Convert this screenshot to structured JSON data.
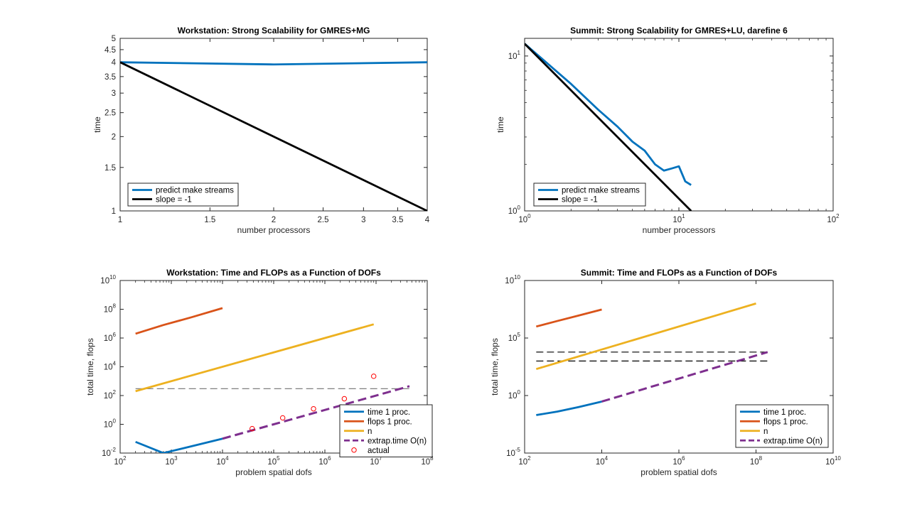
{
  "chart_data": [
    {
      "type": "line",
      "title": "Workstation: Strong Scalability for GMRES+MG",
      "xlabel": "number processors",
      "ylabel": "time",
      "xscale": "log",
      "yscale": "log",
      "xlim": [
        1,
        4
      ],
      "ylim": [
        1,
        5
      ],
      "xticks": [
        1,
        1.5,
        2,
        2.5,
        3,
        3.5,
        4
      ],
      "xtick_labels": [
        "1",
        "1.5",
        "2",
        "2.5",
        "3",
        "3.5",
        "4"
      ],
      "yticks": [
        1,
        1.5,
        2,
        2.5,
        3,
        3.5,
        4,
        4.5,
        5
      ],
      "ytick_labels": [
        "1",
        "1.5",
        "2",
        "2.5",
        "3",
        "3.5",
        "4",
        "4.5",
        "5"
      ],
      "grid": false,
      "legend_position": "bottom-left",
      "series": [
        {
          "name": "predict make streams",
          "color": "#0072BD",
          "style": "solid",
          "marker": "none",
          "x": [
            1,
            2,
            4
          ],
          "y": [
            4.0,
            3.92,
            4.0
          ]
        },
        {
          "name": "slope = -1",
          "color": "#000000",
          "style": "solid",
          "marker": "none",
          "x": [
            1,
            4
          ],
          "y": [
            4,
            1
          ]
        }
      ]
    },
    {
      "type": "line",
      "title": "Summit: Strong Scalability for GMRES+LU, darefine 6",
      "xlabel": "number processors",
      "ylabel": "time",
      "xscale": "log",
      "yscale": "log",
      "xlim": [
        1,
        100
      ],
      "ylim": [
        1,
        13
      ],
      "xticks": [
        1,
        10,
        100
      ],
      "xtick_labels": [
        {
          "base": "10",
          "exp": "0"
        },
        {
          "base": "10",
          "exp": "1"
        },
        {
          "base": "10",
          "exp": "2"
        }
      ],
      "yticks": [
        1,
        10
      ],
      "ytick_labels": [
        {
          "base": "10",
          "exp": "0"
        },
        {
          "base": "10",
          "exp": "1"
        }
      ],
      "grid": false,
      "legend_position": "bottom-left",
      "series": [
        {
          "name": "predict make streams",
          "color": "#0072BD",
          "style": "solid",
          "marker": "none",
          "x": [
            1,
            2,
            3,
            4,
            5,
            6,
            7,
            8,
            9,
            10,
            11,
            12
          ],
          "y": [
            12.0,
            6.6,
            4.5,
            3.5,
            2.8,
            2.45,
            2.0,
            1.82,
            1.88,
            1.94,
            1.55,
            1.47
          ]
        },
        {
          "name": "slope = -1",
          "color": "#000000",
          "style": "solid",
          "marker": "none",
          "x": [
            1,
            12
          ],
          "y": [
            12,
            1
          ]
        }
      ]
    },
    {
      "type": "line",
      "title": "Workstation: Time and FLOPs as a Function of DOFs",
      "xlabel": "problem spatial dofs",
      "ylabel": "total time, flops",
      "xscale": "log",
      "yscale": "log",
      "xlim": [
        100,
        100000000
      ],
      "ylim": [
        0.01,
        10000000000
      ],
      "xticks": [
        100,
        1000,
        10000,
        100000,
        1000000,
        10000000,
        100000000
      ],
      "xtick_labels": [
        {
          "base": "10",
          "exp": "2"
        },
        {
          "base": "10",
          "exp": "3"
        },
        {
          "base": "10",
          "exp": "4"
        },
        {
          "base": "10",
          "exp": "5"
        },
        {
          "base": "10",
          "exp": "6"
        },
        {
          "base": "10",
          "exp": "7"
        },
        {
          "base": "10",
          "exp": "8"
        }
      ],
      "yticks": [
        0.01,
        1,
        100,
        10000,
        1000000,
        100000000,
        10000000000
      ],
      "ytick_labels": [
        {
          "base": "10",
          "exp": "-2"
        },
        {
          "base": "10",
          "exp": "0"
        },
        {
          "base": "10",
          "exp": "2"
        },
        {
          "base": "10",
          "exp": "4"
        },
        {
          "base": "10",
          "exp": "6"
        },
        {
          "base": "10",
          "exp": "8"
        },
        {
          "base": "10",
          "exp": "10"
        }
      ],
      "grid": false,
      "legend_position": "bottom-right",
      "series": [
        {
          "name": "time 1 proc.",
          "color": "#0072BD",
          "style": "solid",
          "marker": "none",
          "x": [
            200,
            700,
            2500,
            10000
          ],
          "y": [
            0.06,
            0.01,
            0.03,
            0.1
          ]
        },
        {
          "name": "flops 1 proc.",
          "color": "#D95319",
          "style": "solid",
          "marker": "none",
          "x": [
            200,
            700,
            2500,
            10000
          ],
          "y": [
            2000000,
            8000000,
            28000000,
            120000000
          ]
        },
        {
          "name": "n",
          "color": "#EDB120",
          "style": "solid",
          "marker": "none",
          "x": [
            200,
            9000000
          ],
          "y": [
            200,
            9000000
          ]
        },
        {
          "name": "extrap.time O(n)",
          "color": "#7E2F8E",
          "style": "dashed",
          "marker": "none",
          "x": [
            10000,
            45000000
          ],
          "y": [
            0.1,
            450
          ]
        },
        {
          "name": "actual",
          "color": "#FF0000",
          "style": "none",
          "marker": "circle",
          "x": [
            38000,
            150000,
            600000,
            2400000,
            9000000
          ],
          "y": [
            0.5,
            2.8,
            12,
            60,
            2200
          ]
        },
        {
          "name": "",
          "color": "#808080",
          "style": "dashed",
          "marker": "none",
          "x": [
            200,
            45000000
          ],
          "y": [
            300,
            300
          ]
        }
      ]
    },
    {
      "type": "line",
      "title": "Summit: Time and FLOPs as a Function of DOFs",
      "xlabel": "problem spatial dofs",
      "ylabel": "total time, flops",
      "xscale": "log",
      "yscale": "log",
      "xlim": [
        100,
        10000000000
      ],
      "ylim": [
        1e-05,
        10000000000
      ],
      "xticks": [
        100,
        10000,
        1000000,
        100000000,
        10000000000
      ],
      "xtick_labels": [
        {
          "base": "10",
          "exp": "2"
        },
        {
          "base": "10",
          "exp": "4"
        },
        {
          "base": "10",
          "exp": "6"
        },
        {
          "base": "10",
          "exp": "8"
        },
        {
          "base": "10",
          "exp": "10"
        }
      ],
      "yticks": [
        1e-05,
        1,
        100000,
        10000000000
      ],
      "ytick_labels": [
        {
          "base": "10",
          "exp": "-5"
        },
        {
          "base": "10",
          "exp": "0"
        },
        {
          "base": "10",
          "exp": "5"
        },
        {
          "base": "10",
          "exp": "10"
        }
      ],
      "grid": false,
      "legend_position": "bottom-right",
      "series": [
        {
          "name": "time 1 proc.",
          "color": "#0072BD",
          "style": "solid",
          "marker": "none",
          "x": [
            200,
            700,
            2500,
            10000
          ],
          "y": [
            0.02,
            0.04,
            0.1,
            0.3
          ]
        },
        {
          "name": "flops 1 proc.",
          "color": "#D95319",
          "style": "solid",
          "marker": "none",
          "x": [
            200,
            700,
            2500,
            10000
          ],
          "y": [
            1000000,
            3000000,
            9000000,
            30000000
          ]
        },
        {
          "name": "n",
          "color": "#EDB120",
          "style": "solid",
          "marker": "none",
          "x": [
            200,
            100000000
          ],
          "y": [
            200,
            100000000
          ]
        },
        {
          "name": "extrap.time O(n)",
          "color": "#7E2F8E",
          "style": "dashed",
          "marker": "none",
          "x": [
            10000,
            200000000
          ],
          "y": [
            0.3,
            6000
          ]
        },
        {
          "name": "",
          "color": "#000000",
          "style": "dashed",
          "marker": "none",
          "x": [
            200,
            200000000
          ],
          "y": [
            6000,
            6000
          ]
        },
        {
          "name": "",
          "color": "#000000",
          "style": "dashed",
          "marker": "none",
          "x": [
            200,
            200000000
          ],
          "y": [
            1000,
            1000
          ]
        }
      ]
    }
  ]
}
